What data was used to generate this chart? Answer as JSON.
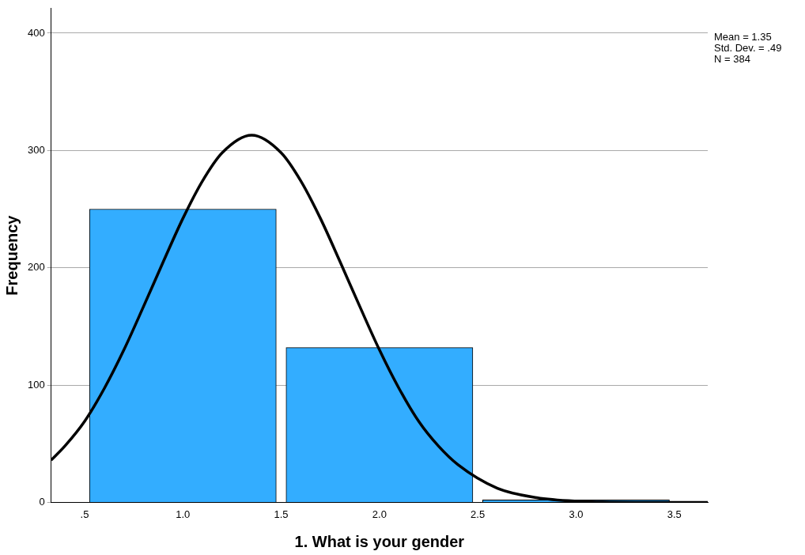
{
  "chart_data": {
    "type": "histogram",
    "xlabel": "1. What is your gender",
    "ylabel": "Frequency",
    "bins": [
      0.5,
      1.5,
      2.5,
      3.5
    ],
    "values": [
      250,
      132,
      2
    ],
    "color": "#33adff",
    "xlim": [
      0.33,
      3.67
    ],
    "xticks": [
      {
        "value": 0.5,
        "label": ".5"
      },
      {
        "value": 1,
        "label": "1.0"
      },
      {
        "value": 1.5,
        "label": "1.5"
      },
      {
        "value": 2,
        "label": "2.0"
      },
      {
        "value": 2.5,
        "label": "2.5"
      },
      {
        "value": 3,
        "label": "3.0"
      },
      {
        "value": 3.5,
        "label": "3.5"
      }
    ],
    "ylim": [
      0,
      421
    ],
    "yticks": [
      0,
      100,
      200,
      300,
      400
    ],
    "grid": "y",
    "legend": false,
    "series": [
      {
        "type": "line",
        "color": "#000000",
        "x": [
          0.33,
          0.4,
          0.5,
          0.6,
          0.7,
          0.8,
          0.9,
          1.0,
          1.1,
          1.2,
          1.35,
          1.5,
          1.6,
          1.7,
          1.8,
          1.9,
          2.0,
          2.1,
          2.2,
          2.3,
          2.4,
          2.6,
          2.8,
          3.0,
          3.3,
          3.67
        ],
        "values": [
          36,
          48,
          69,
          97,
          130,
          167,
          205,
          242,
          274,
          298,
          313,
          298,
          274,
          242,
          205,
          167,
          130,
          97,
          69,
          48,
          32,
          12,
          4,
          1,
          0,
          0
        ]
      }
    ],
    "annotations": [
      "Mean = 1.35",
      "Std. Dev. = .49",
      "N = 384"
    ]
  }
}
